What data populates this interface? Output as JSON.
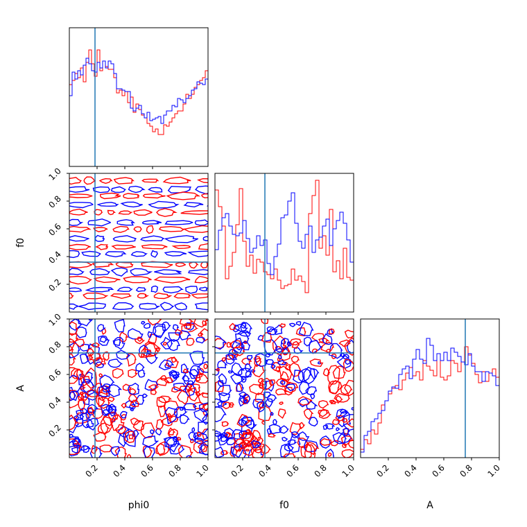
{
  "chart_data": {
    "type": "corner",
    "parameters": [
      "phi0",
      "f0",
      "A"
    ],
    "axis_labels": {
      "x": [
        "phi0",
        "f0",
        "A"
      ],
      "y": [
        "f0",
        "A"
      ]
    },
    "ranges": [
      [
        0,
        1
      ],
      [
        0,
        1
      ],
      [
        0,
        1
      ]
    ],
    "ticks": {
      "x": [
        "0.2",
        "0.4",
        "0.6",
        "0.8",
        "1.0"
      ],
      "y": [
        "0.2",
        "0.4",
        "0.6",
        "0.8",
        "1.0"
      ]
    },
    "truth": {
      "color": "#1f77b4",
      "values": [
        0.185,
        0.36,
        0.755
      ]
    },
    "series_colors": [
      "#ff0000",
      "#0000ff"
    ],
    "histograms": [
      {
        "param": "phi0",
        "bins": 50,
        "ylim": [
          0,
          1
        ],
        "series": [
          {
            "values": [
              0.59,
              0.62,
              0.67,
              0.64,
              0.71,
              0.61,
              0.75,
              0.84,
              0.74,
              0.65,
              0.84,
              0.69,
              0.76,
              0.72,
              0.7,
              0.7,
              0.64,
              0.53,
              0.55,
              0.51,
              0.54,
              0.46,
              0.5,
              0.39,
              0.45,
              0.41,
              0.37,
              0.35,
              0.31,
              0.29,
              0.25,
              0.27,
              0.23,
              0.23,
              0.3,
              0.29,
              0.32,
              0.35,
              0.38,
              0.4,
              0.4,
              0.45,
              0.52,
              0.49,
              0.52,
              0.57,
              0.59,
              0.62,
              0.64,
              0.69
            ]
          },
          {
            "values": [
              0.51,
              0.68,
              0.63,
              0.69,
              0.66,
              0.73,
              0.78,
              0.74,
              0.69,
              0.68,
              0.75,
              0.71,
              0.76,
              0.71,
              0.76,
              0.74,
              0.67,
              0.56,
              0.56,
              0.55,
              0.54,
              0.54,
              0.42,
              0.4,
              0.42,
              0.44,
              0.38,
              0.35,
              0.39,
              0.33,
              0.34,
              0.35,
              0.36,
              0.31,
              0.37,
              0.4,
              0.4,
              0.44,
              0.43,
              0.49,
              0.48,
              0.46,
              0.49,
              0.51,
              0.55,
              0.56,
              0.61,
              0.6,
              0.59,
              0.63
            ]
          }
        ]
      },
      {
        "param": "f0",
        "bins": 40,
        "ylim": [
          0,
          1
        ],
        "series": [
          {
            "values": [
              0.88,
              0.76,
              0.62,
              0.24,
              0.33,
              0.43,
              0.63,
              0.89,
              0.51,
              0.33,
              0.41,
              0.28,
              0.38,
              0.36,
              0.29,
              0.27,
              0.24,
              0.31,
              0.23,
              0.17,
              0.19,
              0.2,
              0.31,
              0.23,
              0.26,
              0.22,
              0.14,
              0.71,
              0.84,
              0.95,
              0.46,
              0.55,
              0.41,
              0.74,
              0.29,
              0.37,
              0.24,
              0.46,
              0.25,
              0.23
            ]
          },
          {
            "values": [
              0.45,
              0.59,
              0.68,
              0.71,
              0.62,
              0.56,
              0.55,
              0.57,
              0.66,
              0.53,
              0.43,
              0.46,
              0.55,
              0.48,
              0.52,
              0.35,
              0.27,
              0.4,
              0.49,
              0.68,
              0.7,
              0.8,
              0.86,
              0.64,
              0.51,
              0.46,
              0.56,
              0.62,
              0.43,
              0.52,
              0.54,
              0.62,
              0.67,
              0.48,
              0.6,
              0.66,
              0.72,
              0.64,
              0.52,
              0.36
            ]
          }
        ]
      },
      {
        "param": "A",
        "bins": 40,
        "ylim": [
          0,
          1
        ],
        "series": [
          {
            "values": [
              0.06,
              0.13,
              0.1,
              0.2,
              0.17,
              0.25,
              0.38,
              0.41,
              0.46,
              0.5,
              0.52,
              0.49,
              0.56,
              0.61,
              0.65,
              0.59,
              0.62,
              0.56,
              0.7,
              0.66,
              0.63,
              0.59,
              0.75,
              0.58,
              0.56,
              0.59,
              0.7,
              0.68,
              0.62,
              0.69,
              0.8,
              0.74,
              0.68,
              0.6,
              0.54,
              0.62,
              0.55,
              0.61,
              0.64,
              0.58
            ]
          },
          {
            "values": [
              0.04,
              0.16,
              0.19,
              0.26,
              0.28,
              0.32,
              0.34,
              0.41,
              0.48,
              0.51,
              0.5,
              0.6,
              0.64,
              0.66,
              0.57,
              0.71,
              0.78,
              0.71,
              0.68,
              0.86,
              0.81,
              0.7,
              0.75,
              0.7,
              0.76,
              0.7,
              0.79,
              0.76,
              0.73,
              0.69,
              0.67,
              0.75,
              0.66,
              0.62,
              0.62,
              0.55,
              0.62,
              0.61,
              0.59,
              0.52
            ]
          }
        ]
      }
    ],
    "contour_panels": [
      {
        "x": "phi0",
        "y": "f0",
        "row": 1,
        "col": 0,
        "structure": "horizontal-bands"
      },
      {
        "x": "phi0",
        "y": "A",
        "row": 2,
        "col": 0,
        "structure": "scattered"
      },
      {
        "x": "f0",
        "y": "A",
        "row": 2,
        "col": 1,
        "structure": "scattered"
      }
    ]
  }
}
